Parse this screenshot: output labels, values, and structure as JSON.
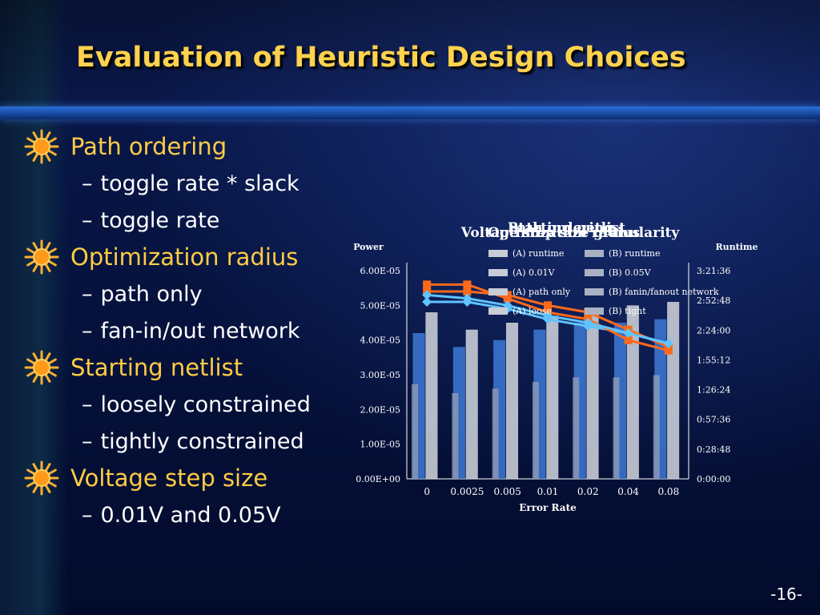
{
  "slide": {
    "title": "Evaluation of Heuristic Design Choices",
    "page_number": "-16-"
  },
  "bullets": [
    {
      "label": "Path ordering",
      "items": [
        "toggle rate * slack",
        "toggle rate"
      ]
    },
    {
      "label": "Optimization radius",
      "items": [
        "path only",
        "fan-in/out network"
      ]
    },
    {
      "label": "Starting netlist",
      "items": [
        "loosely constrained",
        "tightly constrained"
      ]
    },
    {
      "label": "Voltage step size",
      "items": [
        "0.01V and 0.05V"
      ]
    }
  ],
  "icon": "sun-icon",
  "colors": {
    "title": "#ffd24d",
    "bullet_l1": "#ffcc44",
    "text": "#ffffff",
    "accent_rule": "#2a6ed8",
    "series_light": "#5fc4ff",
    "series_orange": "#ff6a1a",
    "bar_gray": "#c8ccd6",
    "bar_blue": "#3d79d6"
  },
  "chart_data": {
    "type": "bar",
    "note_overlapping": "four overlaid charts",
    "titles": [
      "Path ordering",
      "Optimization radius",
      "Starting netlist",
      "Voltage step size granularity"
    ],
    "xlabel": "Error Rate",
    "left_axis_label": "Power",
    "right_axis_label": "Runtime",
    "x_ticks": [
      "0",
      "0.0025",
      "0.005",
      "0.01",
      "0.02",
      "0.04",
      "0.08"
    ],
    "left_ticks": [
      "0.00E+00",
      "1.00E-05",
      "2.00E-05",
      "3.00E-05",
      "4.00E-05",
      "5.00E-05",
      "6.00E-05"
    ],
    "right_ticks": [
      "0:00:00",
      "0:28:48",
      "0:57:36",
      "1:26:24",
      "1:55:12",
      "2:24:00",
      "2:52:48",
      "3:21:36"
    ],
    "legend": [
      "(A) runtime",
      "(B) runtime",
      "(A) 0.01V",
      "(B) 0.05V",
      "(A) path only",
      "(B) fanin/fanout network",
      "(A) loose",
      "(B) tight"
    ],
    "categories": [
      "0",
      "0.0025",
      "0.005",
      "0.01",
      "0.02",
      "0.04",
      "0.08"
    ],
    "series": [
      {
        "name": "(A) runtime",
        "kind": "bar",
        "values": [
          4.2,
          3.8,
          4.0,
          4.3,
          4.5,
          4.5,
          4.6
        ]
      },
      {
        "name": "(B) runtime",
        "kind": "bar",
        "values": [
          4.8,
          4.3,
          4.5,
          4.7,
          4.9,
          5.0,
          5.1
        ]
      },
      {
        "name": "(A) path only",
        "kind": "line",
        "values": [
          5.4,
          5.4,
          5.3,
          5.0,
          4.8,
          4.3,
          3.8
        ]
      },
      {
        "name": "(B) fanin/fanout network",
        "kind": "line",
        "values": [
          5.1,
          5.1,
          4.9,
          4.6,
          4.4,
          4.2,
          3.9
        ]
      },
      {
        "name": "(A) loose",
        "kind": "line",
        "values": [
          5.6,
          5.6,
          5.2,
          4.8,
          4.6,
          4.0,
          3.7
        ]
      },
      {
        "name": "(B) tight",
        "kind": "line",
        "values": [
          5.3,
          5.2,
          5.0,
          4.7,
          4.5,
          4.2,
          3.9
        ]
      }
    ],
    "ylim": [
      0,
      6
    ]
  }
}
